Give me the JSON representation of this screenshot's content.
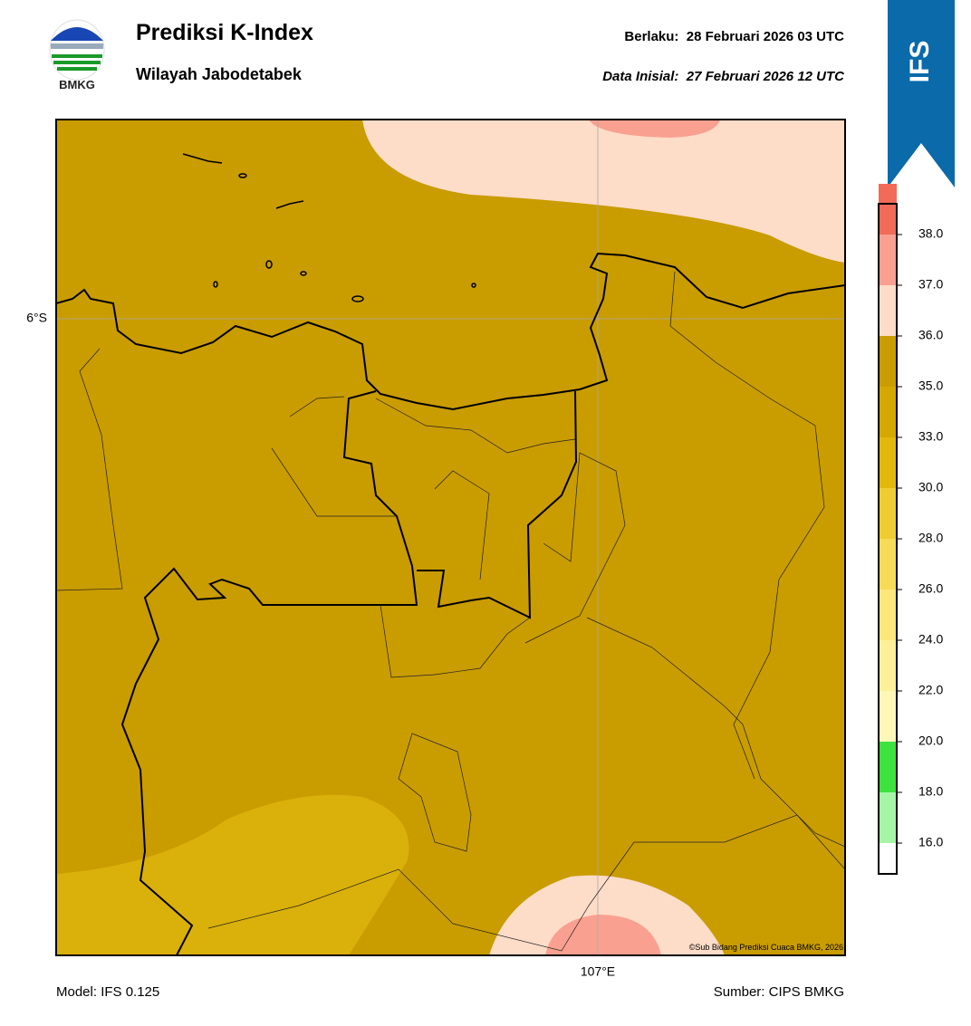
{
  "header": {
    "logo_text": "BMKG",
    "title": "Prediksi K-Index",
    "subtitle": "Wilayah Jabodetabek",
    "valid_time": "Berlaku:  28 Februari 2026 03 UTC",
    "initial_time": "Data Inisial:  27 Februari 2026 12 UTC",
    "badge": "IFS"
  },
  "map": {
    "lat_label": "6°S",
    "lon_label": "107°E",
    "credit": "©Sub Bidang Prediksi Cuaca BMKG, 2026"
  },
  "colorbar": {
    "ticks": [
      {
        "value": 16,
        "label": "16.0"
      },
      {
        "value": 18,
        "label": "18.0"
      },
      {
        "value": 20,
        "label": "20.0"
      },
      {
        "value": 22,
        "label": "22.0"
      },
      {
        "value": 24,
        "label": "24.0"
      },
      {
        "value": 26,
        "label": "26.0"
      },
      {
        "value": 28,
        "label": "28.0"
      },
      {
        "value": 30,
        "label": "30.0"
      },
      {
        "value": 33,
        "label": "33.0"
      },
      {
        "value": 35,
        "label": "35.0"
      },
      {
        "value": 36,
        "label": "36.0"
      },
      {
        "value": 37,
        "label": "37.0"
      },
      {
        "value": 38,
        "label": "38.0"
      }
    ],
    "colors": [
      "#ffffff",
      "#a6f5a6",
      "#3ee23e",
      "#fff7b8",
      "#ffef99",
      "#fde67c",
      "#f7da58",
      "#f0cc33",
      "#e2b80c",
      "#d4a800",
      "#c99c00",
      "#fddcc8",
      "#f9a090",
      "#f26a58",
      "#e22a1e"
    ]
  },
  "footer": {
    "model": "Model: IFS 0.125",
    "source": "Sumber: CIPS BMKG"
  }
}
